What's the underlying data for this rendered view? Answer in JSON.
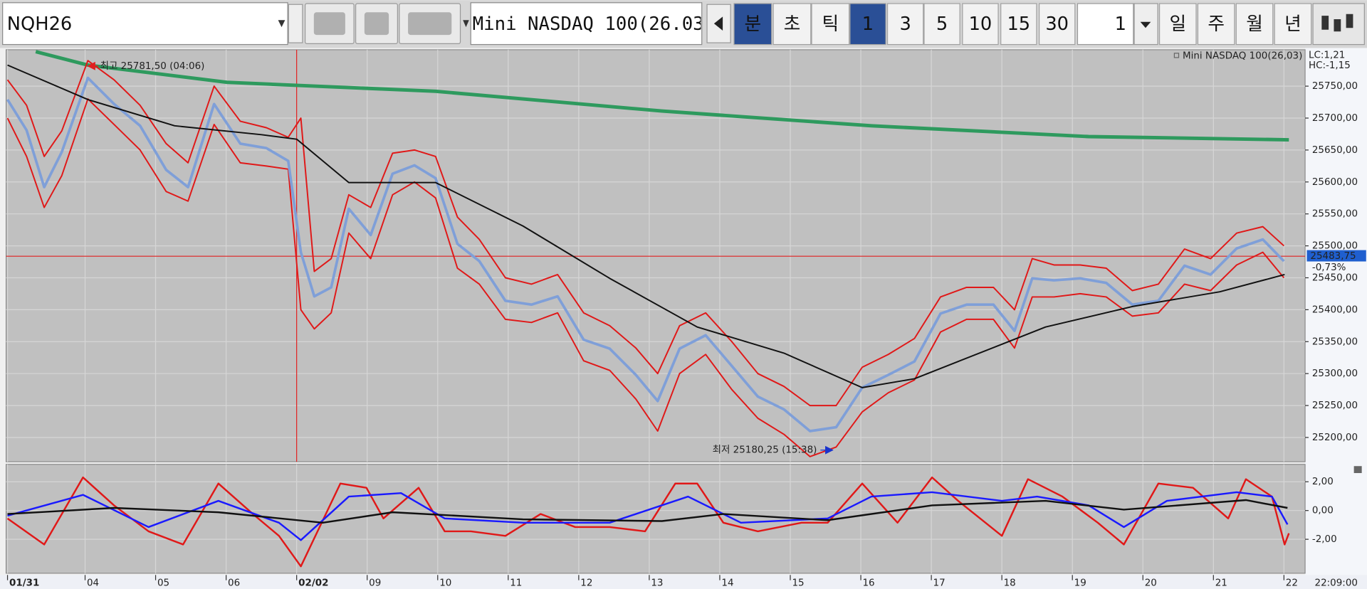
{
  "toolbar": {
    "symbol": "NQH26",
    "name": "Mini NASDAQ 100(26.03",
    "buttons": [
      "분",
      "초",
      "틱",
      "1",
      "3",
      "5",
      "10",
      "15",
      "30"
    ],
    "selected_buttons": [
      0,
      3
    ],
    "count": "1",
    "periods": [
      "일",
      "주",
      "월",
      "년"
    ]
  },
  "chart_data": [
    {
      "type": "line",
      "legend": "Mini NASDAQ 100(26,03)",
      "lc": "LC:1,21",
      "hc": "HC:-1,15",
      "xlim": [
        -0.02,
        18.4
      ],
      "ylim": [
        25162,
        25807
      ],
      "grid": true,
      "cursor_x": 4.1,
      "yticks": [
        {
          "value": 25200,
          "label": "25200,00"
        },
        {
          "value": 25250,
          "label": "25250,00"
        },
        {
          "value": 25300,
          "label": "25300,00"
        },
        {
          "value": 25350,
          "label": "25350,00"
        },
        {
          "value": 25400,
          "label": "25400,00"
        },
        {
          "value": 25450,
          "label": "25450,00"
        },
        {
          "value": 25500,
          "label": "25500,00"
        },
        {
          "value": 25550,
          "label": "25550,00"
        },
        {
          "value": 25600,
          "label": "25600,00"
        },
        {
          "value": 25650,
          "label": "25650,00"
        },
        {
          "value": 25700,
          "label": "25700,00"
        },
        {
          "value": 25750,
          "label": "25750,00"
        }
      ],
      "last": {
        "value": 25483.75,
        "label": "25483,75",
        "change": "-0,73%",
        "color": "#e02020"
      },
      "high": {
        "value": 25781.5,
        "x": 1.14,
        "label": "최고 25781,50 (04:06)",
        "color": "#e02020"
      },
      "low": {
        "value": 25180.25,
        "x": 11.7,
        "label": "최저 25180,25 (15:38)",
        "color": "#1a33cc"
      },
      "series": [
        {
          "color": "#2e9a5e",
          "width": 4,
          "x": [
            0.4,
            1.14,
            3.11,
            6.07,
            9.28,
            12.25,
            15.33,
            18.17
          ],
          "values": [
            25804,
            25783,
            25756,
            25742,
            25711,
            25688,
            25671,
            25666
          ]
        },
        {
          "color": "#e01818",
          "width": 1.6,
          "x": [
            0,
            0.27,
            0.52,
            0.77,
            1.14,
            1.51,
            1.88,
            2.25,
            2.56,
            2.93,
            3.3,
            3.67,
            3.98,
            4.16,
            4.35,
            4.59,
            4.84,
            5.15,
            5.46,
            5.77,
            6.07,
            6.38,
            6.69,
            7.06,
            7.43,
            7.8,
            8.17,
            8.54,
            8.91,
            9.22,
            9.53,
            9.9,
            10.27,
            10.64,
            11.01,
            11.38,
            11.75,
            12.12,
            12.49,
            12.86,
            13.23,
            13.6,
            13.98,
            14.28,
            14.53,
            14.84,
            15.21,
            15.58,
            15.95,
            16.32,
            16.69,
            17.06,
            17.43,
            17.8,
            18.1
          ],
          "values": [
            25760,
            25720,
            25640,
            25680,
            25790,
            25760,
            25720,
            25660,
            25630,
            25750,
            25695,
            25685,
            25670,
            25700,
            25460,
            25480,
            25580,
            25560,
            25645,
            25650,
            25640,
            25545,
            25510,
            25450,
            25440,
            25455,
            25395,
            25375,
            25340,
            25300,
            25375,
            25395,
            25350,
            25300,
            25280,
            25250,
            25250,
            25310,
            25330,
            25355,
            25420,
            25435,
            25435,
            25400,
            25480,
            25470,
            25470,
            25465,
            25430,
            25440,
            25495,
            25480,
            25520,
            25530,
            25500
          ]
        },
        {
          "color": "#e01818",
          "width": 1.6,
          "x": [
            0,
            0.27,
            0.52,
            0.77,
            1.14,
            1.51,
            1.88,
            2.25,
            2.56,
            2.93,
            3.3,
            3.67,
            3.98,
            4.16,
            4.35,
            4.59,
            4.84,
            5.15,
            5.46,
            5.77,
            6.07,
            6.38,
            6.69,
            7.06,
            7.43,
            7.8,
            8.17,
            8.54,
            8.91,
            9.22,
            9.53,
            9.9,
            10.27,
            10.64,
            11.01,
            11.38,
            11.75,
            12.12,
            12.49,
            12.86,
            13.23,
            13.6,
            13.98,
            14.28,
            14.53,
            14.84,
            15.21,
            15.58,
            15.95,
            16.32,
            16.69,
            17.06,
            17.43,
            17.8,
            18.1
          ],
          "values": [
            25700,
            25640,
            25560,
            25610,
            25730,
            25690,
            25650,
            25585,
            25570,
            25690,
            25630,
            25625,
            25620,
            25400,
            25370,
            25395,
            25520,
            25480,
            25580,
            25600,
            25575,
            25465,
            25440,
            25385,
            25380,
            25395,
            25320,
            25305,
            25260,
            25210,
            25300,
            25330,
            25275,
            25230,
            25205,
            25170,
            25185,
            25240,
            25270,
            25290,
            25365,
            25385,
            25385,
            25340,
            25420,
            25420,
            25425,
            25420,
            25390,
            25395,
            25440,
            25430,
            25470,
            25490,
            25450
          ]
        },
        {
          "name": "Mini NASDAQ 100(26,03)",
          "color": "#7f9fd8",
          "width": 3,
          "x": [
            0,
            0.27,
            0.52,
            0.77,
            1.14,
            1.51,
            1.88,
            2.25,
            2.56,
            2.93,
            3.3,
            3.67,
            3.98,
            4.16,
            4.35,
            4.59,
            4.84,
            5.15,
            5.46,
            5.77,
            6.07,
            6.38,
            6.69,
            7.06,
            7.43,
            7.8,
            8.17,
            8.54,
            8.91,
            9.22,
            9.53,
            9.9,
            10.27,
            10.64,
            11.01,
            11.38,
            11.75,
            12.12,
            12.49,
            12.86,
            13.23,
            13.6,
            13.98,
            14.28,
            14.53,
            14.84,
            15.21,
            15.58,
            15.95,
            16.32,
            16.69,
            17.06,
            17.43,
            17.8,
            18.1
          ],
          "values": [
            25729,
            25681,
            25592,
            25647,
            25763,
            25722,
            25688,
            25619,
            25592,
            25722,
            25660,
            25653,
            25633,
            25490,
            25421,
            25435,
            25558,
            25517,
            25613,
            25626,
            25606,
            25503,
            25476,
            25414,
            25408,
            25421,
            25353,
            25339,
            25298,
            25257,
            25339,
            25360,
            25312,
            25264,
            25244,
            25210,
            25216,
            25278,
            25298,
            25319,
            25394,
            25408,
            25408,
            25367,
            25449,
            25446,
            25449,
            25442,
            25408,
            25414,
            25469,
            25455,
            25496,
            25510,
            25476
          ]
        },
        {
          "color": "#111111",
          "width": 1.6,
          "x": [
            0,
            1.14,
            2.37,
            3.6,
            4.1,
            4.84,
            6.07,
            7.31,
            8.54,
            9.78,
            11.01,
            12.12,
            12.86,
            13.48,
            14.1,
            14.72,
            15.95,
            17.19,
            18.11
          ],
          "values": [
            25783,
            25729,
            25688,
            25674,
            25667,
            25599,
            25599,
            25531,
            25449,
            25373,
            25332,
            25278,
            25292,
            25319,
            25346,
            25373,
            25405,
            25428,
            25455
          ]
        }
      ]
    },
    {
      "type": "line",
      "time": "22:09:00",
      "xlim": [
        -0.02,
        18.4
      ],
      "ylim": [
        -4.36,
        3.21
      ],
      "grid": true,
      "xticks": [
        {
          "value": 0,
          "label": "01/31"
        },
        {
          "value": 1.1,
          "label": "04"
        },
        {
          "value": 2.1,
          "label": "05"
        },
        {
          "value": 3.1,
          "label": "06"
        },
        {
          "value": 4.1,
          "label": "02/02"
        },
        {
          "value": 5.1,
          "label": "09"
        },
        {
          "value": 6.1,
          "label": "10"
        },
        {
          "value": 7.1,
          "label": "11"
        },
        {
          "value": 8.1,
          "label": "12"
        },
        {
          "value": 9.1,
          "label": "13"
        },
        {
          "value": 10.1,
          "label": "14"
        },
        {
          "value": 11.1,
          "label": "15"
        },
        {
          "value": 12.1,
          "label": "16"
        },
        {
          "value": 13.1,
          "label": "17"
        },
        {
          "value": 14.1,
          "label": "18"
        },
        {
          "value": 15.1,
          "label": "19"
        },
        {
          "value": 16.1,
          "label": "20"
        },
        {
          "value": 17.1,
          "label": "21"
        },
        {
          "value": 18.1,
          "label": "22"
        }
      ],
      "yticks": [
        {
          "value": 2,
          "label": "2,00"
        },
        {
          "value": 0,
          "label": "0,00"
        },
        {
          "value": -2,
          "label": "-2,00"
        }
      ],
      "series": [
        {
          "color": "#e01818",
          "width": 2,
          "x": [
            0,
            0.52,
            1.07,
            1.51,
            2,
            2.49,
            2.99,
            3.48,
            3.85,
            4.16,
            4.72,
            5.09,
            5.33,
            5.83,
            6.2,
            6.57,
            7.06,
            7.56,
            8.05,
            8.54,
            9.04,
            9.47,
            9.78,
            10.15,
            10.64,
            11.26,
            11.63,
            12.12,
            12.62,
            13.11,
            13.48,
            14.1,
            14.47,
            14.96,
            15.46,
            15.83,
            16.32,
            16.81,
            17.31,
            17.56,
            17.93,
            18.11,
            18.17
          ],
          "values": [
            -0.55,
            -2.36,
            2.3,
            0.36,
            -1.45,
            -2.36,
            1.88,
            -0.24,
            -1.76,
            -3.88,
            1.88,
            1.58,
            -0.55,
            1.58,
            -1.45,
            -1.45,
            -1.76,
            -0.24,
            -1.15,
            -1.15,
            -1.45,
            1.88,
            1.88,
            -0.85,
            -1.45,
            -0.85,
            -0.85,
            1.88,
            -0.85,
            2.3,
            0.67,
            -1.76,
            2.18,
            0.97,
            -0.85,
            -2.36,
            1.88,
            1.58,
            -0.55,
            2.18,
            0.97,
            -2.36,
            -1.58
          ]
        },
        {
          "color": "#1a1aff",
          "width": 2,
          "x": [
            0,
            1.07,
            2,
            2.99,
            3.85,
            4.16,
            4.84,
            5.58,
            6.2,
            7.31,
            8.54,
            9.65,
            10.4,
            11.63,
            12.25,
            13.11,
            14.1,
            14.6,
            15.33,
            15.83,
            16.44,
            17.43,
            17.93,
            18.15
          ],
          "values": [
            -0.36,
            1.09,
            -1.15,
            0.67,
            -0.85,
            -2.06,
            0.97,
            1.21,
            -0.55,
            -0.85,
            -0.85,
            0.97,
            -0.85,
            -0.55,
            0.97,
            1.27,
            0.67,
            0.97,
            0.36,
            -1.15,
            0.67,
            1.27,
            0.97,
            -0.97
          ]
        },
        {
          "color": "#111111",
          "width": 2,
          "x": [
            0,
            1.51,
            2.99,
            4.47,
            5.46,
            7.31,
            9.28,
            10.15,
            11.63,
            13.11,
            14.72,
            15.83,
            17.56,
            18.15
          ],
          "values": [
            -0.24,
            0.18,
            -0.12,
            -0.85,
            -0.12,
            -0.61,
            -0.73,
            -0.24,
            -0.67,
            0.36,
            0.67,
            0.06,
            0.73,
            0.18
          ]
        }
      ]
    }
  ]
}
